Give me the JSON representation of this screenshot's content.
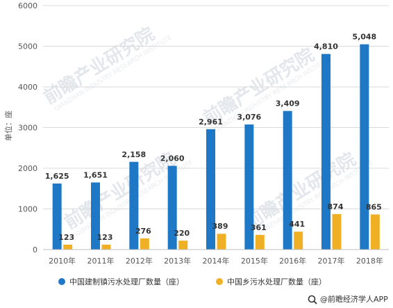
{
  "chart_data": {
    "type": "bar",
    "categories": [
      "2010年",
      "2011年",
      "2012年",
      "2013年",
      "2014年",
      "2015年",
      "2016年",
      "2017年",
      "2018年"
    ],
    "series": [
      {
        "name": "中国建制镇污水处理厂数量（座）",
        "values": [
          1625,
          1651,
          2158,
          2060,
          2961,
          3076,
          3409,
          4810,
          5048
        ],
        "labels": [
          "1,625",
          "1,651",
          "2,158",
          "2,060",
          "2,961",
          "3,076",
          "3,409",
          "4,810",
          "5,048"
        ],
        "color": "#1f78c6"
      },
      {
        "name": "中国乡污水处理厂数量（座）",
        "values": [
          123,
          123,
          276,
          220,
          389,
          361,
          441,
          874,
          865
        ],
        "labels": [
          "123",
          "123",
          "276",
          "220",
          "389",
          "361",
          "441",
          "874",
          "865"
        ],
        "color": "#f0b025"
      }
    ],
    "ylabel": "单位：座",
    "ylim": [
      0,
      6000
    ],
    "yticks": [
      0,
      1000,
      2000,
      3000,
      4000,
      5000,
      6000
    ],
    "ytick_labels": [
      "0",
      "1000",
      "2000",
      "3000",
      "4000",
      "5000",
      "6000"
    ],
    "grid": true,
    "legend": "bottom"
  },
  "watermark": {
    "text": "前瞻产业研究院",
    "subtext": "QIANZHAN INDUSTRY RESEARCH INSTITUTE"
  },
  "source": {
    "icon": "search-icon",
    "text": "@前瞻经济学人APP"
  }
}
